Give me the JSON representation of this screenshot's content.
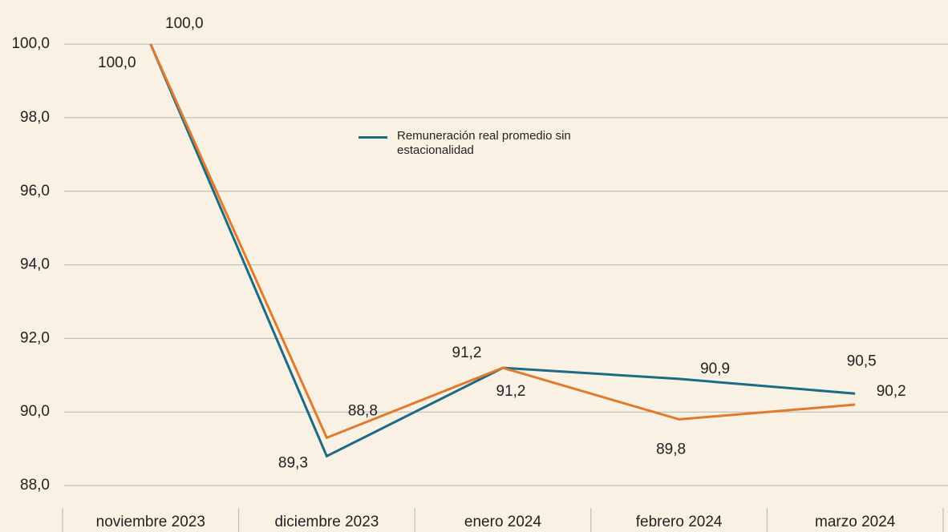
{
  "chart_data": {
    "type": "line",
    "categories": [
      "noviembre 2023",
      "diciembre 2023",
      "enero 2024",
      "febrero 2024",
      "marzo 2024"
    ],
    "series": [
      {
        "name": "Remuneración real promedio sin estacionalidad",
        "color": "#1b6a86",
        "values": [
          100.0,
          88.8,
          91.2,
          90.9,
          90.5
        ],
        "value_labels": [
          "100,0",
          "88,8",
          "91,2",
          "90,9",
          "90,5"
        ]
      },
      {
        "color": "#e07a2c",
        "values": [
          100.0,
          89.3,
          91.2,
          89.8,
          90.2
        ],
        "value_labels": [
          "100,0",
          "89,3",
          "91,2",
          "89,8",
          "90,2"
        ]
      }
    ],
    "ylim": [
      87.5,
      101.2
    ],
    "yticks": [
      {
        "value": 88,
        "label": "88,0"
      },
      {
        "value": 90,
        "label": "90,0"
      },
      {
        "value": 92,
        "label": "92,0"
      },
      {
        "value": 94,
        "label": "94,0"
      },
      {
        "value": 96,
        "label": "96,0"
      },
      {
        "value": 98,
        "label": "98,0"
      },
      {
        "value": 100,
        "label": "100,0"
      }
    ],
    "grid": true
  }
}
